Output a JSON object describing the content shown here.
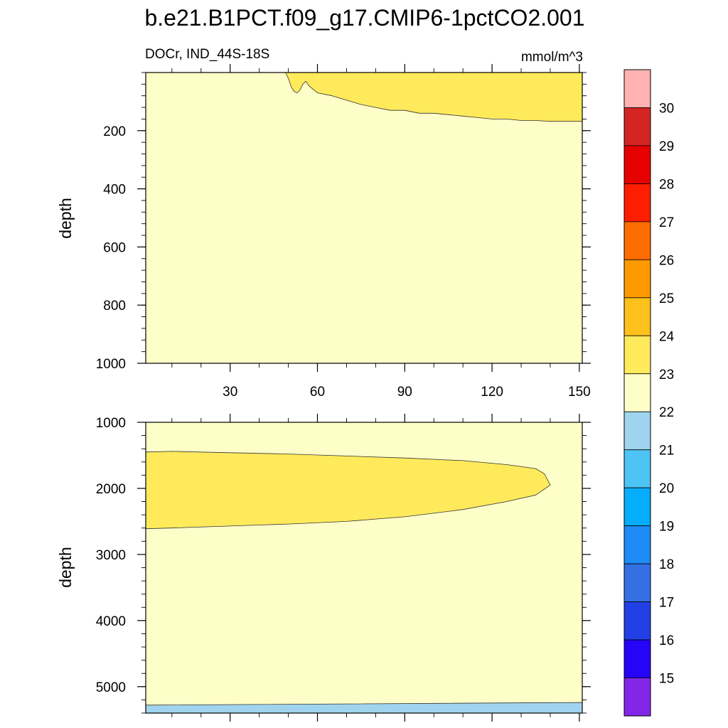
{
  "title": "b.e21.B1PCT.f09_g17.CMIP6-1pctCO2.001",
  "chart_data": {
    "type": "heatmap",
    "subtitle_left": "DOCr, IND_44S-18S",
    "subtitle_right": "mmol/m^3",
    "ylabel": "depth",
    "x_ticks": [
      "30",
      "60",
      "90",
      "120",
      "150"
    ],
    "x_range": [
      1,
      151
    ],
    "panels": [
      {
        "name": "upper",
        "y_range": [
          0,
          1000
        ],
        "y_ticks": [
          "200",
          "400",
          "600",
          "800",
          "1000"
        ],
        "background_level": "22-23",
        "regions": [
          {
            "level": "23-24",
            "polygon": [
              [
                49,
                0
              ],
              [
                50,
                20
              ],
              [
                51,
                50
              ],
              [
                52,
                65
              ],
              [
                53,
                70
              ],
              [
                54,
                60
              ],
              [
                55,
                40
              ],
              [
                56,
                30
              ],
              [
                57,
                45
              ],
              [
                60,
                70
              ],
              [
                65,
                80
              ],
              [
                70,
                95
              ],
              [
                75,
                110
              ],
              [
                80,
                120
              ],
              [
                85,
                130
              ],
              [
                90,
                130
              ],
              [
                95,
                140
              ],
              [
                100,
                140
              ],
              [
                105,
                145
              ],
              [
                110,
                150
              ],
              [
                115,
                155
              ],
              [
                120,
                160
              ],
              [
                125,
                160
              ],
              [
                130,
                165
              ],
              [
                135,
                165
              ],
              [
                140,
                168
              ],
              [
                145,
                168
              ],
              [
                151,
                168
              ],
              [
                151,
                0
              ]
            ]
          }
        ]
      },
      {
        "name": "lower",
        "y_range": [
          1000,
          5400
        ],
        "y_ticks": [
          "1000",
          "2000",
          "3000",
          "4000",
          "5000"
        ],
        "background_level": "22-23",
        "regions": [
          {
            "level": "23-24",
            "polygon": [
              [
                1,
                1450
              ],
              [
                10,
                1440
              ],
              [
                30,
                1460
              ],
              [
                50,
                1480
              ],
              [
                70,
                1510
              ],
              [
                90,
                1540
              ],
              [
                110,
                1580
              ],
              [
                125,
                1640
              ],
              [
                135,
                1700
              ],
              [
                138,
                1780
              ],
              [
                140,
                1950
              ],
              [
                135,
                2100
              ],
              [
                125,
                2200
              ],
              [
                110,
                2320
              ],
              [
                90,
                2430
              ],
              [
                70,
                2500
              ],
              [
                50,
                2540
              ],
              [
                30,
                2570
              ],
              [
                10,
                2600
              ],
              [
                1,
                2610
              ]
            ]
          },
          {
            "level": "21-22",
            "polygon": [
              [
                1,
                5280
              ],
              [
                151,
                5240
              ],
              [
                151,
                5400
              ],
              [
                1,
                5400
              ]
            ]
          }
        ]
      }
    ],
    "colorbar": {
      "labels": [
        "15",
        "16",
        "17",
        "18",
        "19",
        "20",
        "21",
        "22",
        "23",
        "24",
        "25",
        "26",
        "27",
        "28",
        "29",
        "30"
      ],
      "levels": [
        {
          "range": "<15",
          "color": "#8226e8"
        },
        {
          "range": "15-16",
          "color": "#2604f7"
        },
        {
          "range": "16-17",
          "color": "#2240e6"
        },
        {
          "range": "17-18",
          "color": "#3470e4"
        },
        {
          "range": "18-19",
          "color": "#1f8bf6"
        },
        {
          "range": "19-20",
          "color": "#05adfc"
        },
        {
          "range": "20-21",
          "color": "#4ec4f5"
        },
        {
          "range": "21-22",
          "color": "#a0d4ee"
        },
        {
          "range": "22-23",
          "color": "#fefec8"
        },
        {
          "range": "23-24",
          "color": "#ffea5c"
        },
        {
          "range": "24-25",
          "color": "#fec11b"
        },
        {
          "range": "25-26",
          "color": "#fe9a00"
        },
        {
          "range": "26-27",
          "color": "#fe6d00"
        },
        {
          "range": "27-28",
          "color": "#fe1e00"
        },
        {
          "range": "28-29",
          "color": "#e60000"
        },
        {
          "range": "29-30",
          "color": "#d42424"
        },
        {
          "range": ">30",
          "color": "#feb2b2"
        }
      ]
    }
  }
}
